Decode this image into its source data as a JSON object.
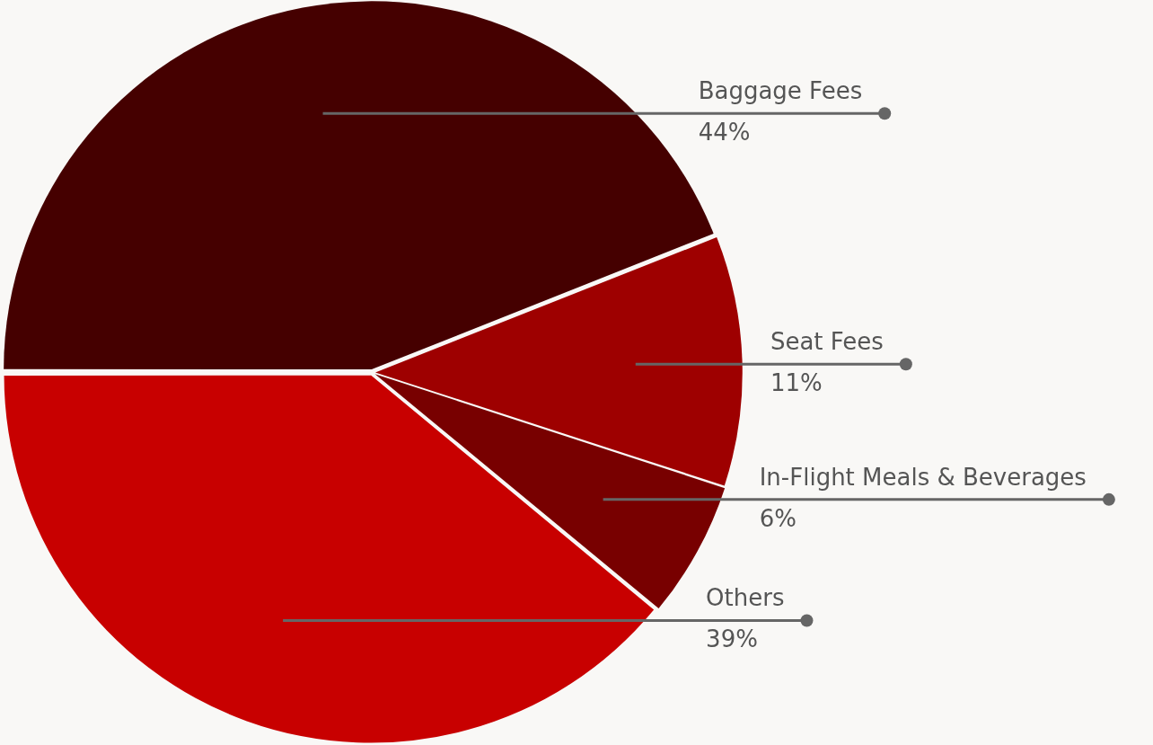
{
  "chart_data": {
    "type": "pie",
    "categories": [
      "Baggage Fees",
      "Seat Fees",
      "In-Flight Meals & Beverages",
      "Others"
    ],
    "values": [
      44,
      11,
      6,
      39
    ],
    "value_labels": [
      "44%",
      "11%",
      "6%",
      "39%"
    ],
    "colors": [
      "#450000",
      "#9e0000",
      "#780000",
      "#c80000"
    ],
    "legend": false
  }
}
